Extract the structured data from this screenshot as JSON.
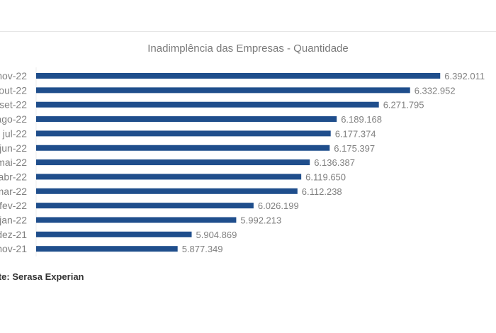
{
  "chart_data": {
    "type": "bar",
    "orientation": "horizontal",
    "title": "Inadimplência das Empresas - Quantidade",
    "categories": [
      "nov-22",
      "out-22",
      "set-22",
      "ago-22",
      "jul-22",
      "jun-22",
      "mai-22",
      "abr-22",
      "mar-22",
      "fev-22",
      "jan-22",
      "dez-21",
      "nov-21"
    ],
    "values": [
      6392011,
      6332952,
      6271795,
      6189168,
      6177374,
      6175397,
      6136387,
      6119650,
      6112238,
      6026199,
      5992213,
      5904869,
      5877349
    ],
    "value_labels": [
      "6.392.011",
      "6.332.952",
      "6.271.795",
      "6.189.168",
      "6.177.374",
      "6.175.397",
      "6.136.387",
      "6.119.650",
      "6.112.238",
      "6.026.199",
      "5.992.213",
      "5.904.869",
      "5.877.349"
    ],
    "xlim": [
      5600000,
      6400000
    ],
    "grid": false,
    "bar_color": "#1f4e8c",
    "source": "Fonte: Serasa Experian"
  }
}
